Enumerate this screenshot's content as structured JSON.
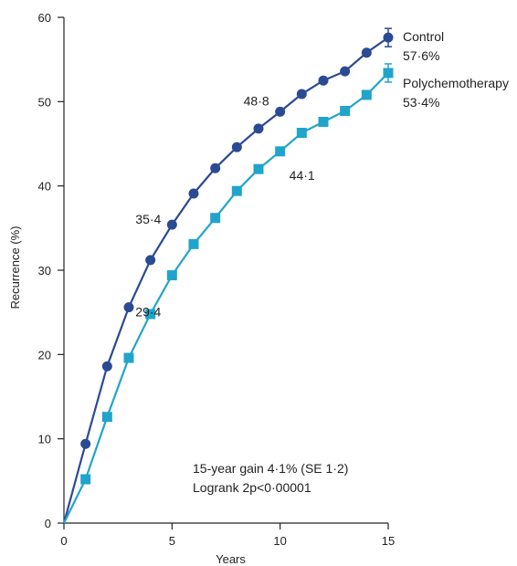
{
  "chart_data": {
    "type": "line",
    "xlabel": "Years",
    "ylabel": "Recurrence (%)",
    "xlim": [
      0,
      15
    ],
    "ylim": [
      0,
      60
    ],
    "xticks": [
      0,
      5,
      10,
      15
    ],
    "yticks": [
      0,
      10,
      20,
      30,
      40,
      50,
      60
    ],
    "grid": false,
    "series": [
      {
        "name": "Control",
        "final_label": "57·6%",
        "color": "#2a4a94",
        "marker": "circle",
        "x": [
          0,
          1,
          2,
          3,
          4,
          5,
          6,
          7,
          8,
          9,
          10,
          11,
          12,
          13,
          14,
          15
        ],
        "y": [
          0,
          9.4,
          18.6,
          25.6,
          31.2,
          35.4,
          39.1,
          42.1,
          44.6,
          46.8,
          48.8,
          50.9,
          52.5,
          53.6,
          55.8,
          57.6
        ],
        "point_labels": [
          {
            "x": 5,
            "text": "35·4"
          },
          {
            "x": 10,
            "text": "48·8"
          }
        ]
      },
      {
        "name": "Polychemotherapy",
        "final_label": "53·4%",
        "color": "#21a4cc",
        "marker": "square",
        "x": [
          0,
          1,
          2,
          3,
          4,
          5,
          6,
          7,
          8,
          9,
          10,
          11,
          12,
          13,
          14,
          15
        ],
        "y": [
          0,
          5.2,
          12.6,
          19.6,
          24.8,
          29.4,
          33.1,
          36.2,
          39.4,
          42.0,
          44.1,
          46.3,
          47.6,
          48.9,
          50.8,
          53.4
        ],
        "point_labels": [
          {
            "x": 5,
            "text": "29·4"
          },
          {
            "x": 10,
            "text": "44·1"
          }
        ]
      }
    ],
    "annotations": [
      "15-year gain 4·1% (SE 1·2)",
      "Logrank 2p<0·00001"
    ]
  }
}
